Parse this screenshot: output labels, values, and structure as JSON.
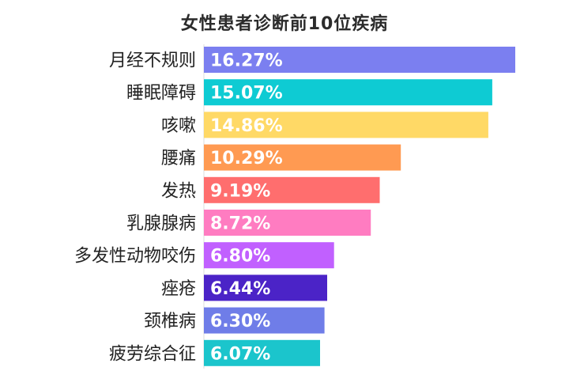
{
  "chart_data": {
    "type": "bar",
    "orientation": "horizontal",
    "title": "女性患者诊断前10位疾病",
    "categories": [
      "月经不规则",
      "睡眠障碍",
      "咳嗽",
      "腰痛",
      "发热",
      "乳腺腺病",
      "多发性动物咬伤",
      "痤疮",
      "颈椎病",
      "疲劳综合征"
    ],
    "values": [
      16.27,
      15.07,
      14.86,
      10.29,
      9.19,
      8.72,
      6.8,
      6.44,
      6.3,
      6.07
    ],
    "value_labels": [
      "16.27%",
      "15.07%",
      "14.86%",
      "10.29%",
      "9.19%",
      "8.72%",
      "6.80%",
      "6.44%",
      "6.30%",
      "6.07%"
    ],
    "colors": [
      "#7b7ff0",
      "#0ecbd3",
      "#ffd966",
      "#ff9a52",
      "#ff6e6e",
      "#ff7cc1",
      "#c160ff",
      "#4b23c7",
      "#6f7de8",
      "#1bc5cc"
    ],
    "xlim": [
      0,
      16.27
    ],
    "grid": false,
    "legend": "none"
  }
}
